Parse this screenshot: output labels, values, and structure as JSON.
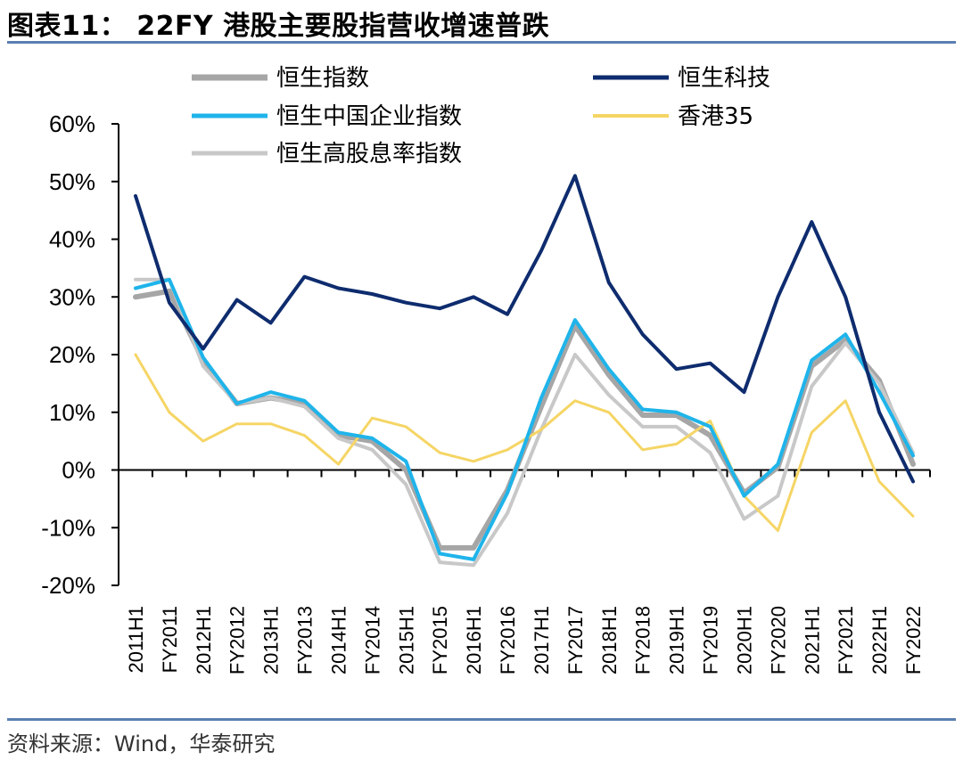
{
  "header": {
    "title": "图表11：  22FY 港股主要股指营收增速普跌"
  },
  "footer": {
    "source": "资料来源：Wind，华泰研究"
  },
  "colors": {
    "rule": "#5b7fb0",
    "hsi": "#a6a6a6",
    "hstech": "#0e2c6e",
    "hscei": "#1fb4ea",
    "hk35": "#f5d565",
    "hshdyi": "#c8c8c8"
  },
  "chart_data": {
    "type": "line",
    "title": "22FY 港股主要股指营收增速普跌",
    "xlabel": "",
    "ylabel": "",
    "ylim": [
      -0.2,
      0.6
    ],
    "yticks": [
      "60%",
      "50%",
      "40%",
      "30%",
      "20%",
      "10%",
      "0%",
      "-10%",
      "-20%"
    ],
    "grid": false,
    "legend_position": "top",
    "categories": [
      "2011H1",
      "FY2011",
      "2012H1",
      "FY2012",
      "2013H1",
      "FY2013",
      "2014H1",
      "FY2014",
      "2015H1",
      "FY2015",
      "2016H1",
      "FY2016",
      "2017H1",
      "FY2017",
      "2018H1",
      "FY2018",
      "2019H1",
      "FY2019",
      "2020H1",
      "FY2020",
      "2021H1",
      "FY2021",
      "2022H1",
      "FY2022"
    ],
    "series": [
      {
        "name": "恒生指数",
        "color": "#a6a6a6",
        "width": 6,
        "values": [
          0.3,
          0.31,
          0.19,
          0.115,
          0.125,
          0.115,
          0.06,
          0.05,
          0.0,
          -0.135,
          -0.135,
          -0.035,
          0.11,
          0.25,
          0.165,
          0.095,
          0.095,
          0.06,
          -0.04,
          0.005,
          0.18,
          0.225,
          0.155,
          0.01
        ]
      },
      {
        "name": "恒生科技",
        "color": "#0e2c6e",
        "width": 4,
        "values": [
          0.475,
          0.29,
          0.21,
          0.295,
          0.255,
          0.335,
          0.315,
          0.305,
          0.29,
          0.28,
          0.3,
          0.27,
          0.38,
          0.51,
          0.325,
          0.235,
          0.175,
          0.185,
          0.135,
          0.3,
          0.43,
          0.3,
          0.1,
          -0.02
        ]
      },
      {
        "name": "恒生中国企业指数",
        "color": "#1fb4ea",
        "width": 4,
        "values": [
          0.315,
          0.33,
          0.195,
          0.115,
          0.135,
          0.12,
          0.065,
          0.055,
          0.015,
          -0.145,
          -0.155,
          -0.04,
          0.125,
          0.26,
          0.175,
          0.105,
          0.1,
          0.075,
          -0.045,
          0.01,
          0.19,
          0.235,
          0.135,
          0.025
        ]
      },
      {
        "name": "香港35",
        "color": "#f5d565",
        "width": 3,
        "values": [
          0.2,
          0.1,
          0.05,
          0.08,
          0.08,
          0.06,
          0.01,
          0.09,
          0.075,
          0.03,
          0.015,
          0.035,
          0.07,
          0.12,
          0.1,
          0.035,
          0.045,
          0.085,
          -0.045,
          -0.105,
          0.065,
          0.12,
          -0.02,
          -0.08
        ]
      },
      {
        "name": "恒生高股息率指数",
        "color": "#c8c8c8",
        "width": 4,
        "values": [
          0.33,
          0.33,
          0.18,
          0.115,
          0.125,
          0.11,
          0.055,
          0.035,
          -0.025,
          -0.16,
          -0.165,
          -0.075,
          0.07,
          0.2,
          0.13,
          0.075,
          0.075,
          0.03,
          -0.085,
          -0.045,
          0.145,
          0.22,
          0.15,
          0.03
        ]
      }
    ]
  }
}
